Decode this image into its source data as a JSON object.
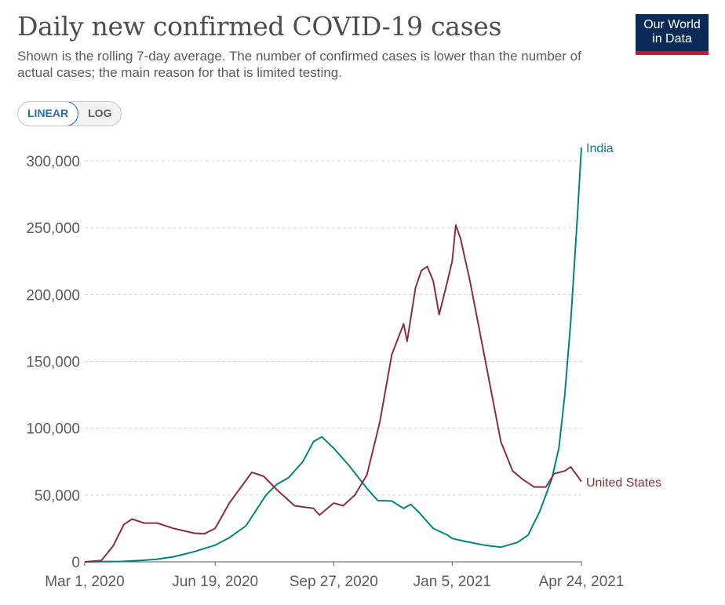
{
  "header": {
    "title": "Daily new confirmed COVID-19 cases",
    "subtitle": "Shown is the rolling 7-day average. The number of confirmed cases is lower than the number of actual cases; the main reason for that is limited testing.",
    "logo_line1": "Our World",
    "logo_line2": "in Data"
  },
  "controls": {
    "linear_label": "LINEAR",
    "log_label": "LOG",
    "selected": "LINEAR"
  },
  "colors": {
    "india": "#00847e",
    "united_states": "#883039",
    "gridline": "#d3d3d3",
    "axis": "#5b5b5b"
  },
  "chart_data": {
    "type": "line",
    "xlabel": "",
    "ylabel": "",
    "x_range": [
      "2020-03-01",
      "2021-04-24"
    ],
    "ylim": [
      0,
      310000
    ],
    "y_ticks": [
      0,
      50000,
      100000,
      150000,
      200000,
      250000,
      300000
    ],
    "y_tick_labels": [
      "0",
      "50,000",
      "100,000",
      "150,000",
      "200,000",
      "250,000",
      "300,000"
    ],
    "x_ticks": [
      "2020-03-01",
      "2020-06-19",
      "2020-09-27",
      "2021-01-05",
      "2021-04-24"
    ],
    "x_tick_labels": [
      "Mar 1, 2020",
      "Jun 19, 2020",
      "Sep 27, 2020",
      "Jan 5, 2021",
      "Apr 24, 2021"
    ],
    "grid": true,
    "legend": "inline labels at line ends",
    "series": [
      {
        "name": "India",
        "color": "#00847e",
        "points": [
          [
            "2020-03-01",
            0
          ],
          [
            "2020-04-01",
            300
          ],
          [
            "2020-04-20",
            1200
          ],
          [
            "2020-05-01",
            2000
          ],
          [
            "2020-05-15",
            3800
          ],
          [
            "2020-06-01",
            7500
          ],
          [
            "2020-06-19",
            12500
          ],
          [
            "2020-07-01",
            18000
          ],
          [
            "2020-07-15",
            27000
          ],
          [
            "2020-08-01",
            50000
          ],
          [
            "2020-08-10",
            58000
          ],
          [
            "2020-08-20",
            63000
          ],
          [
            "2020-09-01",
            75000
          ],
          [
            "2020-09-10",
            90000
          ],
          [
            "2020-09-17",
            93500
          ],
          [
            "2020-09-27",
            85000
          ],
          [
            "2020-10-10",
            72000
          ],
          [
            "2020-10-25",
            55000
          ],
          [
            "2020-11-03",
            46000
          ],
          [
            "2020-11-15",
            45500
          ],
          [
            "2020-11-25",
            40000
          ],
          [
            "2020-12-01",
            43000
          ],
          [
            "2020-12-08",
            37000
          ],
          [
            "2020-12-20",
            25000
          ],
          [
            "2021-01-01",
            20000
          ],
          [
            "2021-01-05",
            17500
          ],
          [
            "2021-01-15",
            15500
          ],
          [
            "2021-02-01",
            12500
          ],
          [
            "2021-02-15",
            11000
          ],
          [
            "2021-03-01",
            14500
          ],
          [
            "2021-03-10",
            20000
          ],
          [
            "2021-03-20",
            38000
          ],
          [
            "2021-03-30",
            62000
          ],
          [
            "2021-04-05",
            85000
          ],
          [
            "2021-04-10",
            125000
          ],
          [
            "2021-04-15",
            180000
          ],
          [
            "2021-04-20",
            250000
          ],
          [
            "2021-04-24",
            310000
          ]
        ]
      },
      {
        "name": "United States",
        "color": "#883039",
        "points": [
          [
            "2020-03-01",
            0
          ],
          [
            "2020-03-15",
            1000
          ],
          [
            "2020-03-25",
            12000
          ],
          [
            "2020-04-03",
            28000
          ],
          [
            "2020-04-10",
            32000
          ],
          [
            "2020-04-20",
            29000
          ],
          [
            "2020-05-01",
            29000
          ],
          [
            "2020-05-15",
            25000
          ],
          [
            "2020-06-01",
            21500
          ],
          [
            "2020-06-10",
            21000
          ],
          [
            "2020-06-19",
            25000
          ],
          [
            "2020-07-01",
            44000
          ],
          [
            "2020-07-20",
            67000
          ],
          [
            "2020-07-30",
            64000
          ],
          [
            "2020-08-10",
            54000
          ],
          [
            "2020-08-25",
            42000
          ],
          [
            "2020-09-10",
            40000
          ],
          [
            "2020-09-15",
            35000
          ],
          [
            "2020-09-27",
            44000
          ],
          [
            "2020-10-05",
            42000
          ],
          [
            "2020-10-15",
            50000
          ],
          [
            "2020-10-25",
            65000
          ],
          [
            "2020-11-05",
            105000
          ],
          [
            "2020-11-15",
            155000
          ],
          [
            "2020-11-25",
            178000
          ],
          [
            "2020-11-28",
            165000
          ],
          [
            "2020-12-05",
            205000
          ],
          [
            "2020-12-10",
            218000
          ],
          [
            "2020-12-15",
            221000
          ],
          [
            "2020-12-20",
            210000
          ],
          [
            "2020-12-25",
            185000
          ],
          [
            "2021-01-01",
            210000
          ],
          [
            "2021-01-05",
            225000
          ],
          [
            "2021-01-08",
            252000
          ],
          [
            "2021-01-12",
            242000
          ],
          [
            "2021-01-20",
            210000
          ],
          [
            "2021-02-01",
            155000
          ],
          [
            "2021-02-15",
            90000
          ],
          [
            "2021-02-25",
            68000
          ],
          [
            "2021-03-05",
            62000
          ],
          [
            "2021-03-15",
            56000
          ],
          [
            "2021-03-25",
            56000
          ],
          [
            "2021-04-01",
            66000
          ],
          [
            "2021-04-10",
            68000
          ],
          [
            "2021-04-15",
            71000
          ],
          [
            "2021-04-20",
            65000
          ],
          [
            "2021-04-24",
            60000
          ]
        ]
      }
    ]
  }
}
